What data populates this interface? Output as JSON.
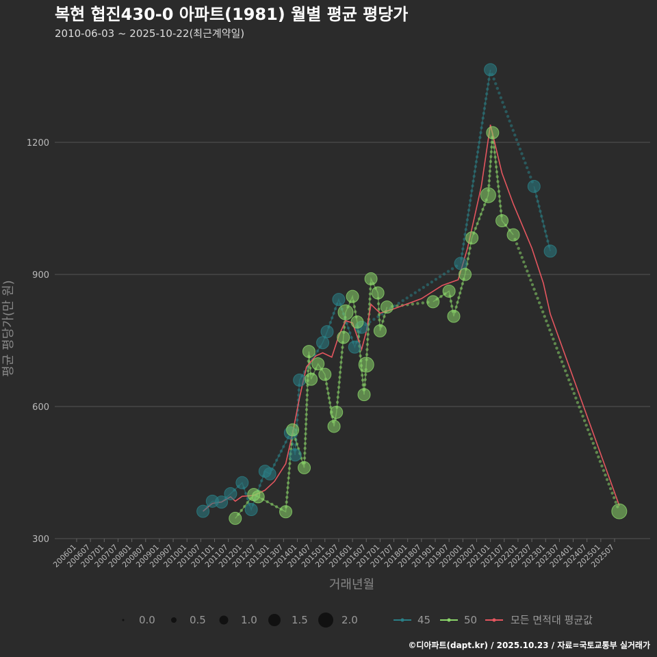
{
  "header": {
    "title": "복현 협진430-0 아파트(1981) 월별 평균 평당가",
    "subtitle": "2010-06-03 ~ 2025-10-22(최근계약일)"
  },
  "footer": {
    "credit": "©디아파트(dapt.kr) / 2025.10.23 / 자료=국토교통부 실거래가"
  },
  "colors": {
    "background": "#2b2b2b",
    "s45": "#2a7f86",
    "s50": "#8bd66a",
    "avg": "#e5565f",
    "grid": "#555555"
  },
  "chart_data": {
    "type": "line",
    "xlabel": "거래년월",
    "ylabel": "평균 평당가(만 원)",
    "ylim": [
      300,
      1410
    ],
    "yticks": [
      300,
      600,
      900,
      1200
    ],
    "categories": [
      "200601",
      "200607",
      "200701",
      "200707",
      "200801",
      "200807",
      "200901",
      "200907",
      "201001",
      "201007",
      "201101",
      "201107",
      "201201",
      "201207",
      "201301",
      "201307",
      "201401",
      "201407",
      "201501",
      "201507",
      "201601",
      "201607",
      "201701",
      "201707",
      "201801",
      "201807",
      "201901",
      "201907",
      "202001",
      "202007",
      "202101",
      "202107",
      "202201",
      "202207",
      "202301",
      "202307",
      "202401",
      "202407",
      "202501",
      "202507"
    ],
    "size_legend": {
      "values": [
        "0.0",
        "0.5",
        "1.0",
        "1.5",
        "2.0"
      ]
    },
    "series": [
      {
        "name": "45",
        "color": "#2a7f86",
        "points": [
          {
            "x": 2010.58,
            "y": 362,
            "s": 1.0
          },
          {
            "x": 2010.92,
            "y": 385,
            "s": 1.0
          },
          {
            "x": 2011.25,
            "y": 383,
            "s": 1.0
          },
          {
            "x": 2011.58,
            "y": 402,
            "s": 1.0
          },
          {
            "x": 2012.0,
            "y": 427,
            "s": 1.0
          },
          {
            "x": 2012.33,
            "y": 366,
            "s": 1.0
          },
          {
            "x": 2012.83,
            "y": 453,
            "s": 1.0
          },
          {
            "x": 2013.0,
            "y": 447,
            "s": 1.0
          },
          {
            "x": 2013.75,
            "y": 540,
            "s": 1.0
          },
          {
            "x": 2013.92,
            "y": 490,
            "s": 1.0
          },
          {
            "x": 2014.08,
            "y": 660,
            "s": 1.0
          },
          {
            "x": 2014.92,
            "y": 745,
            "s": 1.0
          },
          {
            "x": 2015.08,
            "y": 770,
            "s": 1.0
          },
          {
            "x": 2015.5,
            "y": 843,
            "s": 1.0
          },
          {
            "x": 2016.08,
            "y": 735,
            "s": 1.0
          },
          {
            "x": 2016.33,
            "y": 780,
            "s": 1.0
          },
          {
            "x": 2019.92,
            "y": 925,
            "s": 1.0
          },
          {
            "x": 2021.0,
            "y": 1365,
            "s": 1.0
          },
          {
            "x": 2022.58,
            "y": 1100,
            "s": 1.0
          },
          {
            "x": 2023.17,
            "y": 953,
            "s": 1.0
          }
        ]
      },
      {
        "name": "50",
        "color": "#8bd66a",
        "points": [
          {
            "x": 2011.75,
            "y": 346,
            "s": 1.0
          },
          {
            "x": 2012.42,
            "y": 400,
            "s": 1.0
          },
          {
            "x": 2012.58,
            "y": 395,
            "s": 1.0
          },
          {
            "x": 2013.58,
            "y": 361,
            "s": 1.0
          },
          {
            "x": 2013.83,
            "y": 547,
            "s": 1.0
          },
          {
            "x": 2014.25,
            "y": 461,
            "s": 1.0
          },
          {
            "x": 2014.42,
            "y": 725,
            "s": 1.0
          },
          {
            "x": 2014.5,
            "y": 662,
            "s": 1.0
          },
          {
            "x": 2014.75,
            "y": 697,
            "s": 1.0
          },
          {
            "x": 2015.0,
            "y": 673,
            "s": 1.0
          },
          {
            "x": 2015.33,
            "y": 555,
            "s": 1.0
          },
          {
            "x": 2015.42,
            "y": 587,
            "s": 1.0
          },
          {
            "x": 2015.67,
            "y": 757,
            "s": 1.0
          },
          {
            "x": 2015.75,
            "y": 814,
            "s": 1.5
          },
          {
            "x": 2016.0,
            "y": 850,
            "s": 1.0
          },
          {
            "x": 2016.17,
            "y": 792,
            "s": 1.0
          },
          {
            "x": 2016.42,
            "y": 627,
            "s": 1.0
          },
          {
            "x": 2016.5,
            "y": 695,
            "s": 1.5
          },
          {
            "x": 2016.67,
            "y": 890,
            "s": 1.0
          },
          {
            "x": 2016.92,
            "y": 858,
            "s": 1.0
          },
          {
            "x": 2017.0,
            "y": 772,
            "s": 1.0
          },
          {
            "x": 2017.25,
            "y": 826,
            "s": 1.0
          },
          {
            "x": 2018.92,
            "y": 838,
            "s": 1.0
          },
          {
            "x": 2019.5,
            "y": 862,
            "s": 1.0
          },
          {
            "x": 2019.67,
            "y": 805,
            "s": 1.0
          },
          {
            "x": 2020.08,
            "y": 900,
            "s": 1.0
          },
          {
            "x": 2020.33,
            "y": 983,
            "s": 1.0
          },
          {
            "x": 2020.92,
            "y": 1080,
            "s": 1.5
          },
          {
            "x": 2021.08,
            "y": 1222,
            "s": 1.0
          },
          {
            "x": 2021.42,
            "y": 1022,
            "s": 1.0
          },
          {
            "x": 2021.83,
            "y": 990,
            "s": 1.0
          },
          {
            "x": 2025.67,
            "y": 362,
            "s": 1.5
          }
        ]
      },
      {
        "name": "모든 면적대 평균값",
        "color": "#e5565f",
        "points": [
          {
            "x": 2010.58,
            "y": 362
          },
          {
            "x": 2010.92,
            "y": 380
          },
          {
            "x": 2011.25,
            "y": 383
          },
          {
            "x": 2011.58,
            "y": 395
          },
          {
            "x": 2011.75,
            "y": 385
          },
          {
            "x": 2012.0,
            "y": 396
          },
          {
            "x": 2012.42,
            "y": 398
          },
          {
            "x": 2012.83,
            "y": 410
          },
          {
            "x": 2013.17,
            "y": 430
          },
          {
            "x": 2013.58,
            "y": 470
          },
          {
            "x": 2013.83,
            "y": 540
          },
          {
            "x": 2014.08,
            "y": 620
          },
          {
            "x": 2014.33,
            "y": 690
          },
          {
            "x": 2014.67,
            "y": 715
          },
          {
            "x": 2014.92,
            "y": 722
          },
          {
            "x": 2015.25,
            "y": 712
          },
          {
            "x": 2015.5,
            "y": 760
          },
          {
            "x": 2015.75,
            "y": 795
          },
          {
            "x": 2016.0,
            "y": 790
          },
          {
            "x": 2016.33,
            "y": 730
          },
          {
            "x": 2016.5,
            "y": 770
          },
          {
            "x": 2016.67,
            "y": 832
          },
          {
            "x": 2017.0,
            "y": 812
          },
          {
            "x": 2017.5,
            "y": 822
          },
          {
            "x": 2018.5,
            "y": 845
          },
          {
            "x": 2019.25,
            "y": 875
          },
          {
            "x": 2019.83,
            "y": 888
          },
          {
            "x": 2020.17,
            "y": 960
          },
          {
            "x": 2020.67,
            "y": 1100
          },
          {
            "x": 2021.0,
            "y": 1240
          },
          {
            "x": 2021.42,
            "y": 1130
          },
          {
            "x": 2021.83,
            "y": 1060
          },
          {
            "x": 2022.5,
            "y": 960
          },
          {
            "x": 2022.92,
            "y": 880
          },
          {
            "x": 2023.17,
            "y": 810
          },
          {
            "x": 2025.67,
            "y": 375
          }
        ]
      }
    ]
  }
}
